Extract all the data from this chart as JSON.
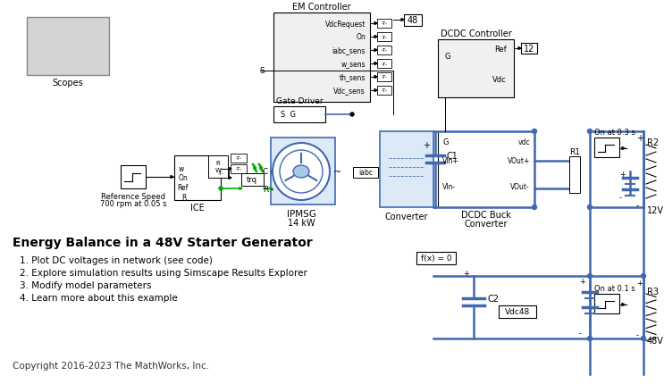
{
  "bg_color": "#ffffff",
  "figsize": [
    7.43,
    4.31
  ],
  "dpi": 100,
  "blue": "#4169b0",
  "light_blue_fill": "#dce9f7",
  "green": "#00aa00",
  "lgray": "#d4d4d4",
  "black": "#000000",
  "title": "Energy Balance in a 48V Starter Generator",
  "bullets": [
    "1. Plot DC voltages in network (see code)",
    "2. Explore simulation results using Simscape Results Explorer",
    "3. Modify model parameters",
    "4. Learn more about this example"
  ],
  "copyright": "Copyright 2016-2023 The MathWorks, Inc."
}
